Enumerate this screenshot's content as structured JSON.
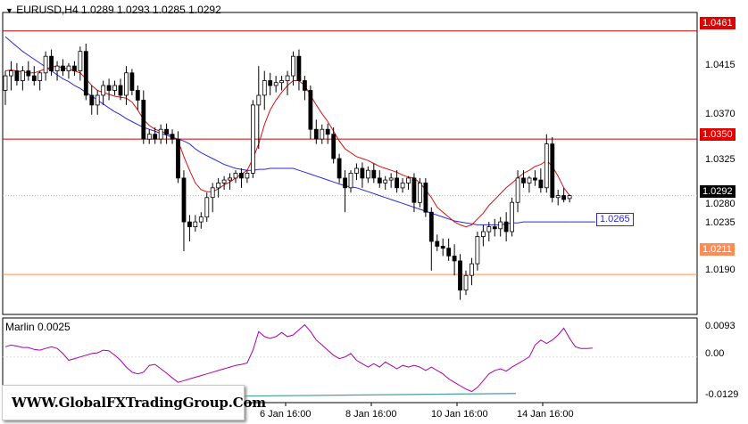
{
  "header": {
    "symbol": "EURUSD,H4",
    "ohlc": "1.0289 1.0293 1.0285 1.0292",
    "indicator": "Marlin 0.0025"
  },
  "price_axis": [
    "1.0415",
    "1.0370",
    "1.0325",
    "1.0280",
    "1.0235",
    "1.0190"
  ],
  "price_tags": {
    "level_top": "1.0461",
    "level_mid": "1.0350",
    "current": "1.0292",
    "ma": "1.0265",
    "level_low": "1.0211"
  },
  "oscillator_axis": [
    "0.0093",
    "0.00",
    "-0.0129"
  ],
  "time_axis": [
    "6 Jan 16:00",
    "8 Jan 16:00",
    "10 Jan 16:00",
    "14 Jan 16:00"
  ],
  "watermark": "WWW.GlobalFXTradingGroup.Com",
  "colors": {
    "level_line": "#cc0000",
    "low_line": "#ff8c55",
    "ma_slow": "#2a2ad8",
    "ma_fast": "#d81010",
    "oscillator": "#aa00aa",
    "signal": "#4aa0a0",
    "bull_candle": "#ffffff",
    "bear_candle": "#000000"
  },
  "chart_data": {
    "type": "candlestick",
    "ylim": [
      1.017,
      1.048
    ],
    "levels": [
      1.0461,
      1.035,
      1.0211
    ],
    "candles": [
      [
        1.04,
        1.042,
        1.0385,
        1.0415
      ],
      [
        1.0415,
        1.043,
        1.04,
        1.042
      ],
      [
        1.042,
        1.0428,
        1.0405,
        1.041
      ],
      [
        1.041,
        1.0425,
        1.04,
        1.042
      ],
      [
        1.042,
        1.043,
        1.041,
        1.0415
      ],
      [
        1.0415,
        1.0425,
        1.0405,
        1.041
      ],
      [
        1.041,
        1.042,
        1.04,
        1.0418
      ],
      [
        1.0418,
        1.044,
        1.041,
        1.0435
      ],
      [
        1.0435,
        1.0442,
        1.0415,
        1.042
      ],
      [
        1.042,
        1.043,
        1.041,
        1.0425
      ],
      [
        1.0425,
        1.0432,
        1.0415,
        1.042
      ],
      [
        1.042,
        1.0428,
        1.0412,
        1.0425
      ],
      [
        1.0425,
        1.043,
        1.0415,
        1.042
      ],
      [
        1.042,
        1.0445,
        1.041,
        1.044
      ],
      [
        1.044,
        1.0448,
        1.039,
        1.0395
      ],
      [
        1.0395,
        1.0405,
        1.0375,
        1.0385
      ],
      [
        1.0385,
        1.04,
        1.0375,
        1.0395
      ],
      [
        1.0395,
        1.041,
        1.0385,
        1.0405
      ],
      [
        1.0405,
        1.0412,
        1.039,
        1.04
      ],
      [
        1.04,
        1.041,
        1.0395,
        1.0405
      ],
      [
        1.0405,
        1.0412,
        1.039,
        1.0395
      ],
      [
        1.0395,
        1.0425,
        1.0385,
        1.0418
      ],
      [
        1.0418,
        1.0422,
        1.0395,
        1.04
      ],
      [
        1.04,
        1.0405,
        1.038,
        1.039
      ],
      [
        1.039,
        1.04,
        1.0345,
        1.035
      ],
      [
        1.035,
        1.036,
        1.0345,
        1.0355
      ],
      [
        1.0355,
        1.0362,
        1.0345,
        1.035
      ],
      [
        1.035,
        1.0365,
        1.0345,
        1.036
      ],
      [
        1.036,
        1.0366,
        1.0345,
        1.0355
      ],
      [
        1.0355,
        1.036,
        1.0345,
        1.035
      ],
      [
        1.035,
        1.0358,
        1.0305,
        1.031
      ],
      [
        1.031,
        1.0318,
        1.0235,
        1.0265
      ],
      [
        1.0265,
        1.0272,
        1.0245,
        1.026
      ],
      [
        1.026,
        1.0272,
        1.0255,
        1.0265
      ],
      [
        1.0265,
        1.0275,
        1.0258,
        1.027
      ],
      [
        1.027,
        1.0295,
        1.0265,
        1.029
      ],
      [
        1.029,
        1.0305,
        1.0275,
        1.03
      ],
      [
        1.03,
        1.031,
        1.029,
        1.0305
      ],
      [
        1.0305,
        1.0312,
        1.0298,
        1.0308
      ],
      [
        1.0308,
        1.0315,
        1.0298,
        1.031
      ],
      [
        1.031,
        1.0318,
        1.0305,
        1.0315
      ],
      [
        1.0315,
        1.032,
        1.03,
        1.031
      ],
      [
        1.031,
        1.0318,
        1.0305,
        1.0315
      ],
      [
        1.0315,
        1.039,
        1.031,
        1.0385
      ],
      [
        1.0385,
        1.0425,
        1.034,
        1.0395
      ],
      [
        1.0395,
        1.042,
        1.038,
        1.041
      ],
      [
        1.041,
        1.0418,
        1.0395,
        1.0405
      ],
      [
        1.0405,
        1.0415,
        1.0398,
        1.0408
      ],
      [
        1.0408,
        1.0415,
        1.04,
        1.041
      ],
      [
        1.041,
        1.042,
        1.0395,
        1.0415
      ],
      [
        1.0415,
        1.044,
        1.0405,
        1.0435
      ],
      [
        1.0435,
        1.0442,
        1.04,
        1.041
      ],
      [
        1.041,
        1.0415,
        1.039,
        1.04
      ],
      [
        1.04,
        1.0405,
        1.035,
        1.036
      ],
      [
        1.036,
        1.037,
        1.0345,
        1.035
      ],
      [
        1.035,
        1.0365,
        1.0345,
        1.036
      ],
      [
        1.036,
        1.0366,
        1.0345,
        1.0355
      ],
      [
        1.0355,
        1.0362,
        1.0325,
        1.033
      ],
      [
        1.033,
        1.0335,
        1.0305,
        1.031
      ],
      [
        1.031,
        1.0318,
        1.0275,
        1.03
      ],
      [
        1.03,
        1.0318,
        1.0295,
        1.0315
      ],
      [
        1.0315,
        1.0325,
        1.0308,
        1.032
      ],
      [
        1.032,
        1.0326,
        1.03,
        1.031
      ],
      [
        1.031,
        1.0322,
        1.0305,
        1.0318
      ],
      [
        1.0318,
        1.0325,
        1.0305,
        1.031
      ],
      [
        1.031,
        1.0318,
        1.03,
        1.0305
      ],
      [
        1.0305,
        1.0312,
        1.0298,
        1.0308
      ],
      [
        1.0308,
        1.0315,
        1.03,
        1.031
      ],
      [
        1.031,
        1.0318,
        1.0295,
        1.03
      ],
      [
        1.03,
        1.031,
        1.0295,
        1.0305
      ],
      [
        1.0305,
        1.0312,
        1.0298,
        1.031
      ],
      [
        1.031,
        1.0315,
        1.0275,
        1.0285
      ],
      [
        1.0285,
        1.031,
        1.028,
        1.0305
      ],
      [
        1.0305,
        1.031,
        1.027,
        1.0275
      ],
      [
        1.0275,
        1.028,
        1.0215,
        1.0245
      ],
      [
        1.0245,
        1.0252,
        1.0235,
        1.024
      ],
      [
        1.024,
        1.0248,
        1.023,
        1.0238
      ],
      [
        1.0238,
        1.0248,
        1.0225,
        1.023
      ],
      [
        1.023,
        1.0242,
        1.021,
        1.0225
      ],
      [
        1.0225,
        1.0232,
        1.0185,
        1.0195
      ],
      [
        1.0195,
        1.0215,
        1.019,
        1.021
      ],
      [
        1.021,
        1.0228,
        1.02,
        1.0222
      ],
      [
        1.0222,
        1.0255,
        1.0215,
        1.025
      ],
      [
        1.025,
        1.0262,
        1.024,
        1.0255
      ],
      [
        1.0255,
        1.0265,
        1.0245,
        1.026
      ],
      [
        1.026,
        1.0268,
        1.025,
        1.0258
      ],
      [
        1.0258,
        1.027,
        1.025,
        1.0265
      ],
      [
        1.0265,
        1.0275,
        1.0245,
        1.0255
      ],
      [
        1.0255,
        1.029,
        1.025,
        1.0285
      ],
      [
        1.0285,
        1.0318,
        1.0275,
        1.031
      ],
      [
        1.031,
        1.0318,
        1.03,
        1.0305
      ],
      [
        1.0305,
        1.0312,
        1.0295,
        1.031
      ],
      [
        1.031,
        1.0318,
        1.0302,
        1.0308
      ],
      [
        1.0308,
        1.032,
        1.0295,
        1.03
      ],
      [
        1.03,
        1.0355,
        1.0295,
        1.0345
      ],
      [
        1.0345,
        1.0352,
        1.0285,
        1.029
      ],
      [
        1.029,
        1.0298,
        1.0282,
        1.0292
      ],
      [
        1.0292,
        1.03,
        1.0285,
        1.0288
      ],
      [
        1.0289,
        1.0293,
        1.0285,
        1.0292
      ]
    ],
    "ma_slow": [
      1.0455,
      1.045,
      1.0445,
      1.044,
      1.0436,
      1.0432,
      1.0428,
      1.0424,
      1.042,
      1.0416,
      1.0412,
      1.0409,
      1.0405,
      1.0402,
      1.0398,
      1.0394,
      1.039,
      1.0386,
      1.0382,
      1.0378,
      1.0375,
      1.0371,
      1.0368,
      1.0365,
      1.0362,
      1.036,
      1.0358,
      1.0356,
      1.0354,
      1.0352,
      1.035,
      1.0348,
      1.0345,
      1.034,
      1.0336,
      1.0333,
      1.033,
      1.0327,
      1.0324,
      1.0322,
      1.032,
      1.0319,
      1.0318,
      1.0318,
      1.0319,
      1.0319,
      1.032,
      1.032,
      1.032,
      1.032,
      1.032,
      1.0318,
      1.0316,
      1.0314,
      1.0312,
      1.031,
      1.0308,
      1.0306,
      1.0304,
      1.0302,
      1.0301,
      1.03,
      1.0298,
      1.0296,
      1.0294,
      1.0292,
      1.029,
      1.0288,
      1.0286,
      1.0284,
      1.0282,
      1.028,
      1.0278,
      1.0276,
      1.0274,
      1.0272,
      1.027,
      1.0268,
      1.0266,
      1.0265,
      1.0264,
      1.0263,
      1.0262,
      1.0262,
      1.0262,
      1.0262,
      1.0262,
      1.0263,
      1.0264,
      1.0264,
      1.0265,
      1.0265,
      1.0265,
      1.0265,
      1.0265,
      1.0265,
      1.0265,
      1.0265,
      1.0265
    ],
    "ma_fast": [
      1.042,
      1.0421,
      1.042,
      1.0419,
      1.0418,
      1.0418,
      1.042,
      1.0422,
      1.0424,
      1.0425,
      1.0423,
      1.0422,
      1.042,
      1.0418,
      1.0412,
      1.0405,
      1.04,
      1.0398,
      1.0396,
      1.0394,
      1.0393,
      1.0392,
      1.0388,
      1.038,
      1.037,
      1.0364,
      1.036,
      1.0358,
      1.0356,
      1.0353,
      1.0348,
      1.0332,
      1.0318,
      1.0305,
      1.0298,
      1.0296,
      1.0296,
      1.0299,
      1.0303,
      1.0306,
      1.031,
      1.0314,
      1.0318,
      1.033,
      1.0345,
      1.0365,
      1.038,
      1.039,
      1.0398,
      1.0405,
      1.041,
      1.041,
      1.0405,
      1.0395,
      1.0385,
      1.0376,
      1.0368,
      1.0358,
      1.0348,
      1.034,
      1.0336,
      1.0332,
      1.033,
      1.0328,
      1.0325,
      1.0322,
      1.032,
      1.0318,
      1.0316,
      1.0313,
      1.0311,
      1.031,
      1.0305,
      1.0298,
      1.029,
      1.028,
      1.0275,
      1.027,
      1.0265,
      1.0262,
      1.026,
      1.0262,
      1.0268,
      1.0274,
      1.0282,
      1.0288,
      1.0294,
      1.03,
      1.0305,
      1.031,
      1.0315,
      1.0318,
      1.0322,
      1.0324,
      1.0328,
      1.0322,
      1.0312,
      1.03,
      1.0292
    ],
    "oscillator": [
      0.003,
      0.0035,
      0.0032,
      0.0028,
      0.0028,
      0.0022,
      0.002,
      0.0025,
      0.003,
      0.0025,
      0.001,
      -0.001,
      -0.0005,
      0.0,
      0.0005,
      0.001,
      0.0012,
      0.002,
      0.0018,
      0.0005,
      -0.001,
      -0.003,
      -0.0045,
      -0.005,
      -0.0045,
      -0.0025,
      -0.0022,
      -0.0035,
      -0.0048,
      -0.0062,
      -0.0075,
      -0.007,
      -0.0065,
      -0.006,
      -0.0055,
      -0.005,
      -0.0045,
      -0.004,
      -0.0035,
      -0.003,
      -0.0025,
      -0.0022,
      -0.0018,
      0.002,
      0.0075,
      0.006,
      0.0055,
      0.006,
      0.0072,
      0.006,
      0.0065,
      0.008,
      0.0095,
      0.0075,
      0.005,
      0.0035,
      0.002,
      0.0005,
      -0.0005,
      0.0,
      0.001,
      -0.001,
      -0.002,
      -0.003,
      -0.002,
      -0.003,
      -0.0015,
      -0.0025,
      -0.0035,
      -0.0025,
      -0.003,
      -0.0025,
      -0.003,
      -0.004,
      -0.003,
      -0.004,
      -0.005,
      -0.0065,
      -0.0075,
      -0.0085,
      -0.0095,
      -0.0102,
      -0.009,
      -0.007,
      -0.005,
      -0.004,
      -0.0035,
      -0.0042,
      -0.003,
      -0.002,
      -0.001,
      0.0,
      0.0035,
      0.005,
      0.004,
      0.005,
      0.0065,
      0.0085,
      0.0055,
      0.003,
      0.0025,
      0.0025,
      0.0026
    ],
    "signal": [
      -0.0118,
      -0.0108
    ],
    "osc_ylim": [
      -0.0135,
      0.0115
    ]
  }
}
